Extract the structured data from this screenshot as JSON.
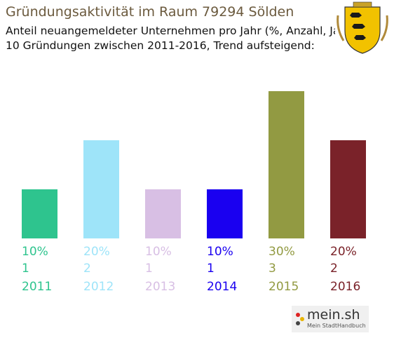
{
  "header": {
    "title": "Gründungsaktivität im Raum 79294 Sölden",
    "subtitle_line1": "Anteil neuangemeldeter Unternehmen pro Jahr (%, Anzahl, Jahr)",
    "subtitle_line2": "10 Gründungen zwischen 2011-2016, Trend aufsteigend:"
  },
  "crest": {
    "icon": "coat-of-arms-icon"
  },
  "logo": {
    "main": "mein.sh",
    "sub": "Mein StadtHandbuch"
  },
  "chart_data": {
    "type": "bar",
    "title": "Gründungsaktivität im Raum 79294 Sölden",
    "categories": [
      "2011",
      "2012",
      "2013",
      "2014",
      "2015",
      "2016"
    ],
    "values": [
      1,
      2,
      1,
      1,
      3,
      2
    ],
    "percents": [
      "10%",
      "20%",
      "10%",
      "10%",
      "30%",
      "20%"
    ],
    "colors": [
      "#2ec48e",
      "#9ee4f9",
      "#d8bfe4",
      "#1a00f0",
      "#929a42",
      "#7a2229"
    ],
    "ylim": [
      0,
      3
    ],
    "grid": false
  }
}
